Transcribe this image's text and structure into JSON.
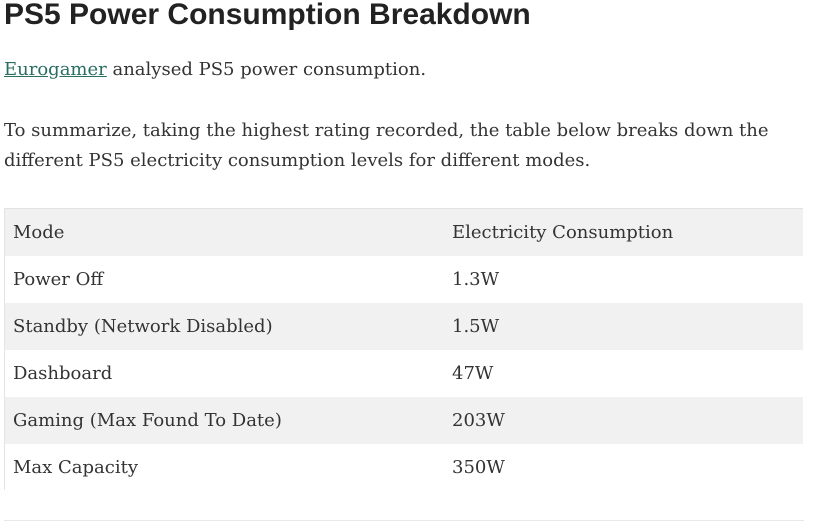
{
  "article": {
    "title": "PS5 Power Consumption Breakdown",
    "intro_link": "Eurogamer",
    "intro_rest": " analysed PS5 power consumption.",
    "summary": "To summarize, taking the highest rating recorded, the table below breaks down the different PS5 electricity consumption levels for different modes."
  },
  "table": {
    "headers": [
      "Mode",
      "Electricity Consumption"
    ],
    "rows": [
      [
        "Power Off",
        "1.3W"
      ],
      [
        "Standby (Network Disabled)",
        "1.5W"
      ],
      [
        "Dashboard",
        "47W"
      ],
      [
        "Gaming (Max Found To Date)",
        "203W"
      ],
      [
        "Max Capacity",
        "350W"
      ]
    ]
  }
}
